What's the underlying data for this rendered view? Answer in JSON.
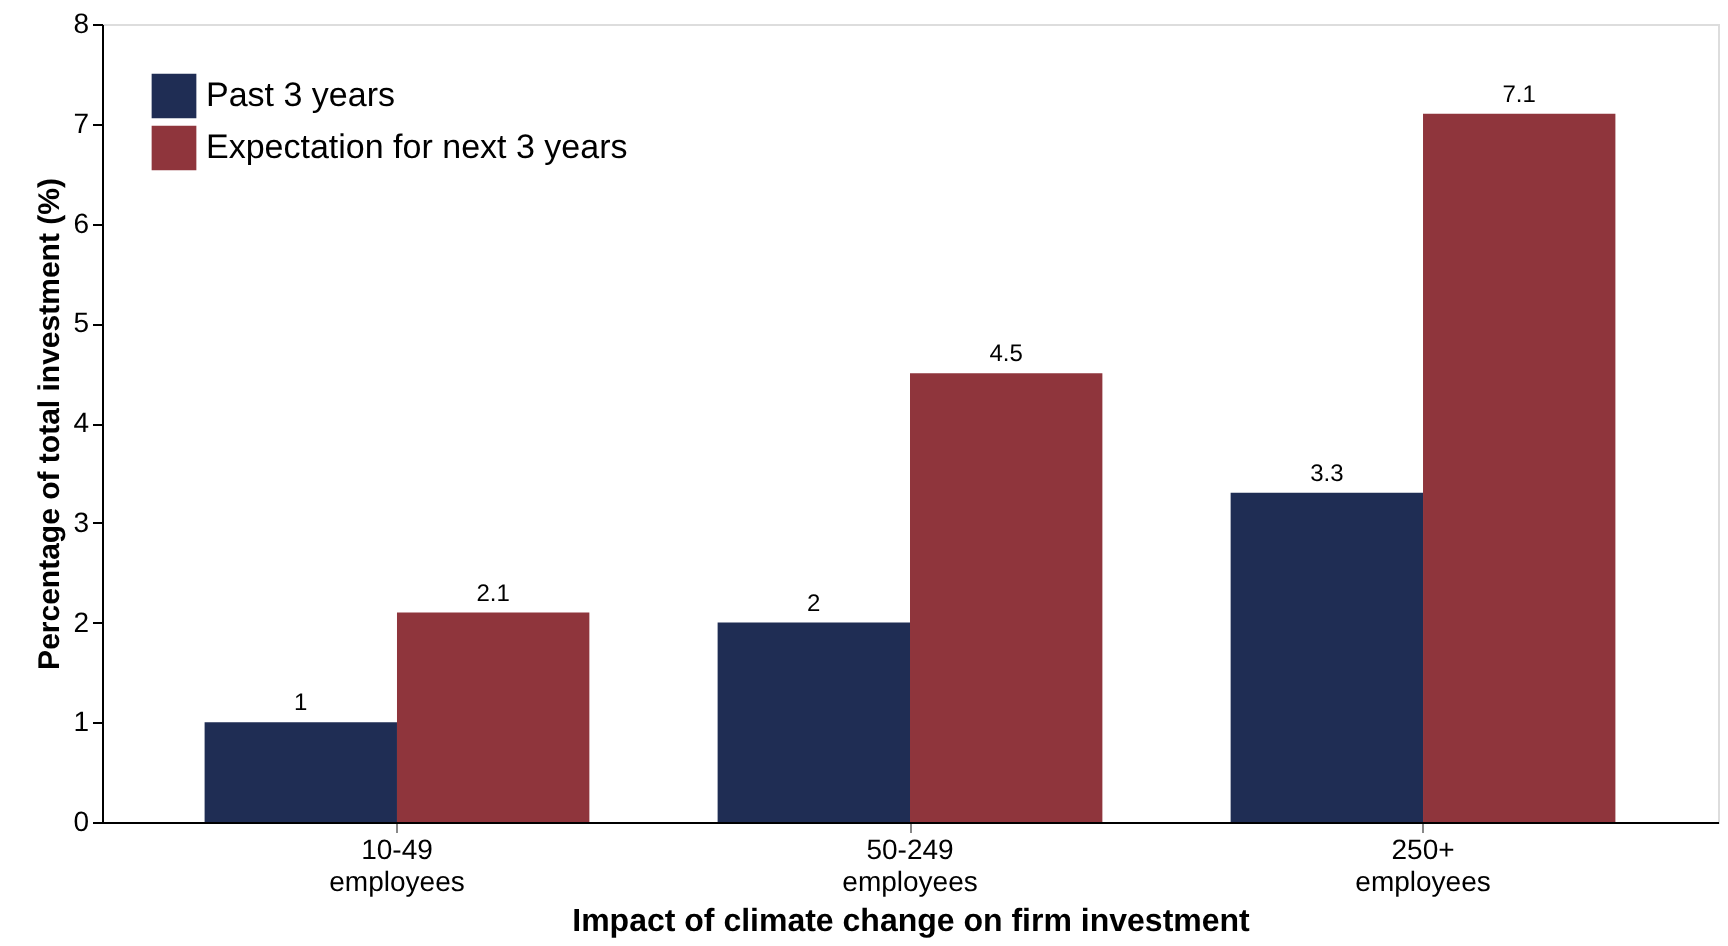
{
  "chart_data": {
    "type": "bar",
    "xlabel": "Impact of climate change on firm investment",
    "ylabel": "Percentage of total investment (%)",
    "categories": [
      "10-49 employees",
      "50-249 employees",
      "250+ employees"
    ],
    "series": [
      {
        "name": "Past 3 years",
        "color": "#1f2d54",
        "values": [
          1,
          2,
          3.3
        ]
      },
      {
        "name": "Expectation for next 3 years",
        "color": "#8f353c",
        "values": [
          2.1,
          4.5,
          7.1
        ]
      }
    ],
    "ylim": [
      0,
      8
    ],
    "yticks": [
      0,
      1,
      2,
      3,
      4,
      5,
      6,
      7,
      8
    ],
    "grid": false,
    "legend": "top left",
    "data_labels": true
  }
}
